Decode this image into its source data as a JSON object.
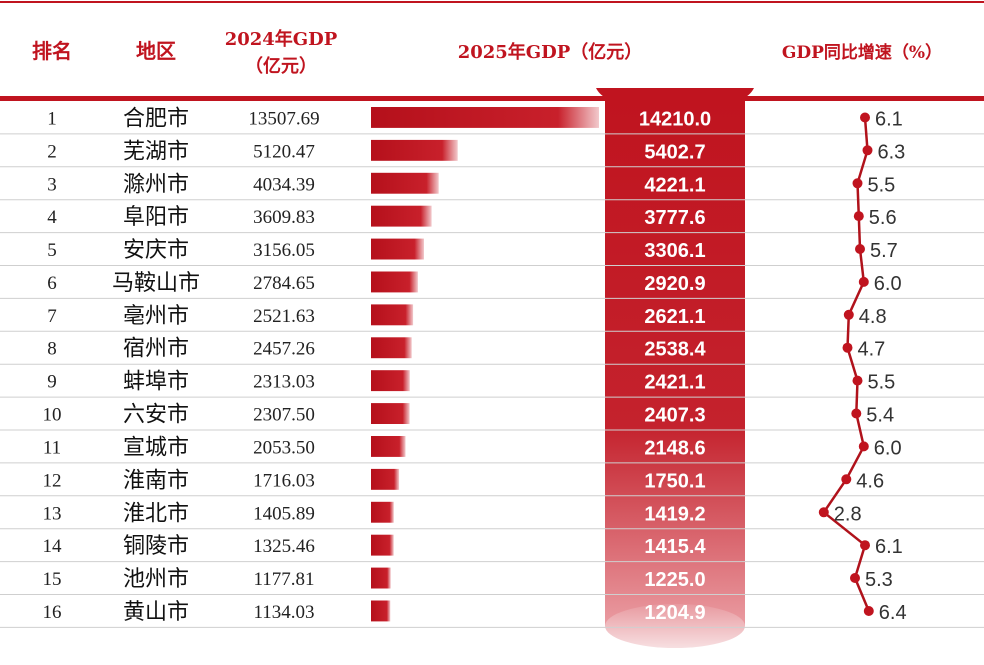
{
  "header": {
    "rank": "排名",
    "region": "地区",
    "gdp2024_line1": "2024年GDP",
    "gdp2024_line2": "（亿元）",
    "gdp2025": "2025年GDP（亿元）",
    "growth": "GDP同比增速（%）"
  },
  "colors": {
    "accent": "#c0141f",
    "header_text": "#c0141f",
    "row_line": "#c9c9c9",
    "line": "#b0121b",
    "white": "#ffffff"
  },
  "chart_data": {
    "type": "table",
    "columns": [
      "排名",
      "地区",
      "2024年GDP（亿元）",
      "2025年GDP（亿元）",
      "GDP同比增速（%）"
    ],
    "rows": [
      {
        "rank": "1",
        "city": "合肥市",
        "gdp2024": "13507.69",
        "gdp2025": "14210.0",
        "growth": "6.1"
      },
      {
        "rank": "2",
        "city": "芜湖市",
        "gdp2024": "5120.47",
        "gdp2025": "5402.7",
        "growth": "6.3"
      },
      {
        "rank": "3",
        "city": "滁州市",
        "gdp2024": "4034.39",
        "gdp2025": "4221.1",
        "growth": "5.5"
      },
      {
        "rank": "4",
        "city": "阜阳市",
        "gdp2024": "3609.83",
        "gdp2025": "3777.6",
        "growth": "5.6"
      },
      {
        "rank": "5",
        "city": "安庆市",
        "gdp2024": "3156.05",
        "gdp2025": "3306.1",
        "growth": "5.7"
      },
      {
        "rank": "6",
        "city": "马鞍山市",
        "gdp2024": "2784.65",
        "gdp2025": "2920.9",
        "growth": "6.0"
      },
      {
        "rank": "7",
        "city": "亳州市",
        "gdp2024": "2521.63",
        "gdp2025": "2621.1",
        "growth": "4.8"
      },
      {
        "rank": "8",
        "city": "宿州市",
        "gdp2024": "2457.26",
        "gdp2025": "2538.4",
        "growth": "4.7"
      },
      {
        "rank": "9",
        "city": "蚌埠市",
        "gdp2024": "2313.03",
        "gdp2025": "2421.1",
        "growth": "5.5"
      },
      {
        "rank": "10",
        "city": "六安市",
        "gdp2024": "2307.50",
        "gdp2025": "2407.3",
        "growth": "5.4"
      },
      {
        "rank": "11",
        "city": "宣城市",
        "gdp2024": "2053.50",
        "gdp2025": "2148.6",
        "growth": "6.0"
      },
      {
        "rank": "12",
        "city": "淮南市",
        "gdp2024": "1716.03",
        "gdp2025": "1750.1",
        "growth": "4.6"
      },
      {
        "rank": "13",
        "city": "淮北市",
        "gdp2024": "1405.89",
        "gdp2025": "1419.2",
        "growth": "2.8"
      },
      {
        "rank": "14",
        "city": "铜陵市",
        "gdp2024": "1325.46",
        "gdp2025": "1415.4",
        "growth": "6.1"
      },
      {
        "rank": "15",
        "city": "池州市",
        "gdp2024": "1177.81",
        "gdp2025": "1225.0",
        "growth": "5.3"
      },
      {
        "rank": "16",
        "city": "黄山市",
        "gdp2024": "1134.03",
        "gdp2025": "1204.9",
        "growth": "6.4"
      }
    ],
    "bar_series": "gdp2025",
    "line_series": "growth",
    "growth_range": [
      2.5,
      6.5
    ]
  }
}
